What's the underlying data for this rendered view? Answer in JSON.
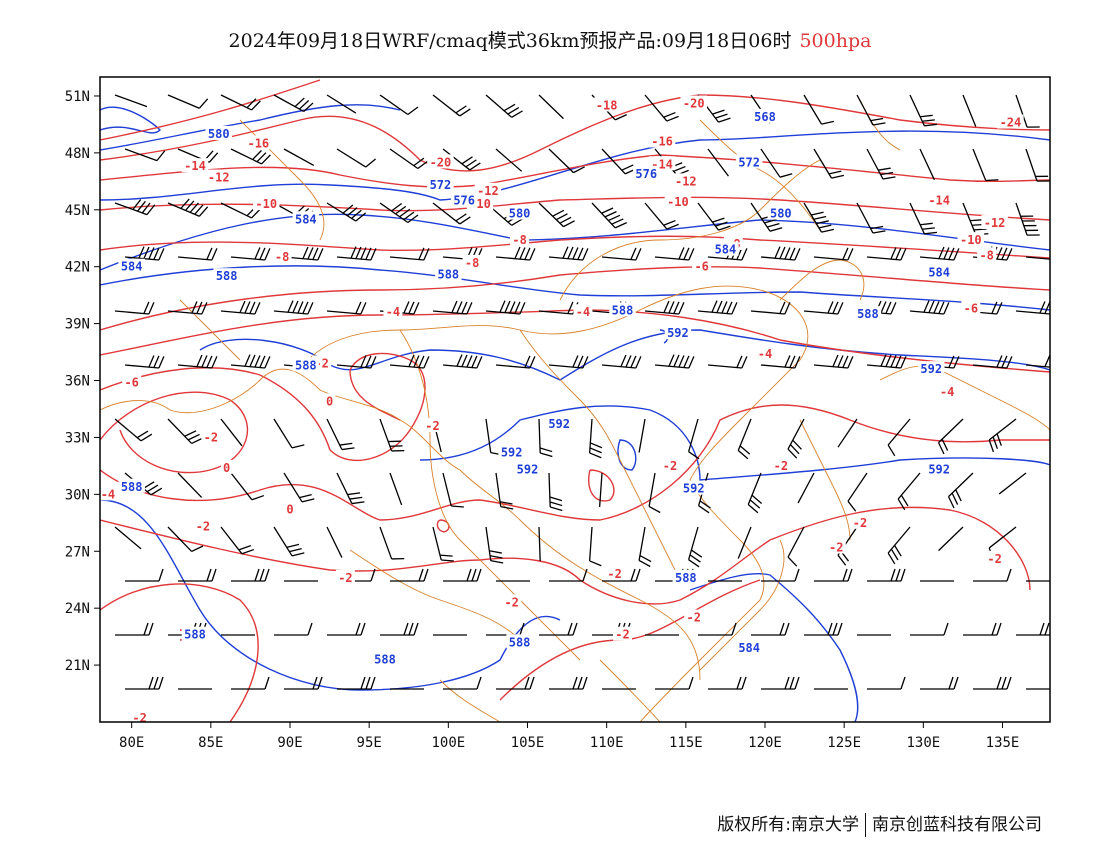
{
  "title": {
    "main": "2024年09月18日WRF/cmaq模式36km预报产品:09月18日06时",
    "level": "500hpa",
    "level_color": "#e0383a"
  },
  "axes": {
    "lat_labels": [
      "51N",
      "48N",
      "45N",
      "42N",
      "39N",
      "36N",
      "33N",
      "30N",
      "27N",
      "24N",
      "21N"
    ],
    "lat_values": [
      51,
      48,
      45,
      42,
      39,
      36,
      33,
      30,
      27,
      24,
      21
    ],
    "lon_labels": [
      "80E",
      "85E",
      "90E",
      "95E",
      "100E",
      "105E",
      "110E",
      "115E",
      "120E",
      "125E",
      "130E",
      "135E"
    ],
    "lon_values": [
      80,
      85,
      90,
      95,
      100,
      105,
      110,
      115,
      120,
      125,
      130,
      135
    ],
    "lon_range": [
      78,
      138
    ],
    "lat_range": [
      18,
      52
    ]
  },
  "colors": {
    "temperature": "#e0383a",
    "geopotential": "#1f3fd6",
    "boundaries": "#d9822b",
    "barbs": "#000000"
  },
  "temperature_labels": [
    {
      "text": "-16",
      "lon": 88,
      "lat": 48.5
    },
    {
      "text": "-14",
      "lon": 84,
      "lat": 47.3
    },
    {
      "text": "-12",
      "lon": 85.5,
      "lat": 46.7
    },
    {
      "text": "-10",
      "lon": 88.5,
      "lat": 45.3
    },
    {
      "text": "-8",
      "lon": 89.5,
      "lat": 42.5
    },
    {
      "text": "-20",
      "lon": 99.5,
      "lat": 47.5
    },
    {
      "text": "-12",
      "lon": 102.5,
      "lat": 46
    },
    {
      "text": "-10",
      "lon": 102,
      "lat": 45.3
    },
    {
      "text": "-18",
      "lon": 110,
      "lat": 50.5
    },
    {
      "text": "-20",
      "lon": 115.5,
      "lat": 50.6
    },
    {
      "text": "-16",
      "lon": 113.5,
      "lat": 48.6
    },
    {
      "text": "-14",
      "lon": 113.5,
      "lat": 47.4
    },
    {
      "text": "-12",
      "lon": 115,
      "lat": 46.5
    },
    {
      "text": "-10",
      "lon": 114.5,
      "lat": 45.4
    },
    {
      "text": "-8",
      "lon": 118,
      "lat": 43.2
    },
    {
      "text": "-6",
      "lon": 116,
      "lat": 42
    },
    {
      "text": "-8",
      "lon": 104.5,
      "lat": 43.4
    },
    {
      "text": "-8",
      "lon": 101.5,
      "lat": 42.2
    },
    {
      "text": "-24",
      "lon": 135.5,
      "lat": 49.6
    },
    {
      "text": "-14",
      "lon": 131,
      "lat": 45.5
    },
    {
      "text": "-12",
      "lon": 134.5,
      "lat": 44.3
    },
    {
      "text": "-10",
      "lon": 133,
      "lat": 43.4
    },
    {
      "text": "-8",
      "lon": 134,
      "lat": 42.6
    },
    {
      "text": "-6",
      "lon": 133,
      "lat": 39.8
    },
    {
      "text": "-4",
      "lon": 108.5,
      "lat": 39.6
    },
    {
      "text": "-4",
      "lon": 96.5,
      "lat": 39.6
    },
    {
      "text": "-4",
      "lon": 120,
      "lat": 37.4
    },
    {
      "text": "-4",
      "lon": 131.5,
      "lat": 35.4
    },
    {
      "text": "-6",
      "lon": 80,
      "lat": 35.9
    },
    {
      "text": "-2",
      "lon": 92,
      "lat": 36.9
    },
    {
      "text": "0",
      "lon": 92.5,
      "lat": 34.9
    },
    {
      "text": "-2",
      "lon": 85,
      "lat": 33
    },
    {
      "text": "0",
      "lon": 86,
      "lat": 31.4
    },
    {
      "text": "0",
      "lon": 90,
      "lat": 29.2
    },
    {
      "text": "-2",
      "lon": 99,
      "lat": 33.6
    },
    {
      "text": "-2",
      "lon": 105,
      "lat": 31.2
    },
    {
      "text": "-2",
      "lon": 114,
      "lat": 31.5
    },
    {
      "text": "-2",
      "lon": 121,
      "lat": 31.5
    },
    {
      "text": "-4",
      "lon": 78.5,
      "lat": 30
    },
    {
      "text": "-2",
      "lon": 84.5,
      "lat": 28.3
    },
    {
      "text": "-2",
      "lon": 93.5,
      "lat": 25.6
    },
    {
      "text": "-2",
      "lon": 104,
      "lat": 24.3
    },
    {
      "text": "-2",
      "lon": 110.5,
      "lat": 25.8
    },
    {
      "text": "-2",
      "lon": 111,
      "lat": 22.6
    },
    {
      "text": "-2",
      "lon": 115.5,
      "lat": 23.5
    },
    {
      "text": "-2",
      "lon": 124.5,
      "lat": 27.2
    },
    {
      "text": "-2",
      "lon": 126,
      "lat": 28.5
    },
    {
      "text": "-2",
      "lon": 134.5,
      "lat": 26.6
    },
    {
      "text": "-2",
      "lon": 80.5,
      "lat": 18.2
    }
  ],
  "height_labels": [
    {
      "text": "580",
      "lon": 85.5,
      "lat": 49
    },
    {
      "text": "572",
      "lon": 99.5,
      "lat": 46.3
    },
    {
      "text": "576",
      "lon": 101,
      "lat": 45.5
    },
    {
      "text": "584",
      "lon": 91,
      "lat": 44.5
    },
    {
      "text": "580",
      "lon": 104.5,
      "lat": 44.8
    },
    {
      "text": "568",
      "lon": 120,
      "lat": 49.9
    },
    {
      "text": "572",
      "lon": 119,
      "lat": 47.5
    },
    {
      "text": "576",
      "lon": 112.5,
      "lat": 46.9
    },
    {
      "text": "580",
      "lon": 121,
      "lat": 44.8
    },
    {
      "text": "584",
      "lon": 117.5,
      "lat": 42.9
    },
    {
      "text": "584",
      "lon": 80,
      "lat": 42
    },
    {
      "text": "588",
      "lon": 86,
      "lat": 41.5
    },
    {
      "text": "588",
      "lon": 100,
      "lat": 41.6
    },
    {
      "text": "588",
      "lon": 111,
      "lat": 39.7
    },
    {
      "text": "588",
      "lon": 126.5,
      "lat": 39.5
    },
    {
      "text": "584",
      "lon": 131,
      "lat": 41.7
    },
    {
      "text": "592",
      "lon": 114.5,
      "lat": 38.5
    },
    {
      "text": "592",
      "lon": 130.5,
      "lat": 36.6
    },
    {
      "text": "588",
      "lon": 91,
      "lat": 36.8
    },
    {
      "text": "592",
      "lon": 107,
      "lat": 33.7
    },
    {
      "text": "592",
      "lon": 104,
      "lat": 32.2
    },
    {
      "text": "592",
      "lon": 105,
      "lat": 31.3
    },
    {
      "text": "592",
      "lon": 115.5,
      "lat": 30.3
    },
    {
      "text": "592",
      "lon": 131,
      "lat": 31.3
    },
    {
      "text": "588",
      "lon": 80,
      "lat": 30.4
    },
    {
      "text": "588",
      "lon": 84,
      "lat": 22.6
    },
    {
      "text": "588",
      "lon": 96,
      "lat": 21.3
    },
    {
      "text": "588",
      "lon": 104.5,
      "lat": 22.2
    },
    {
      "text": "588",
      "lon": 115,
      "lat": 25.6
    },
    {
      "text": "584",
      "lon": 119,
      "lat": 21.9
    }
  ],
  "footer": {
    "left": "版权所有:南京大学",
    "right": "南京创蓝科技有限公司"
  }
}
